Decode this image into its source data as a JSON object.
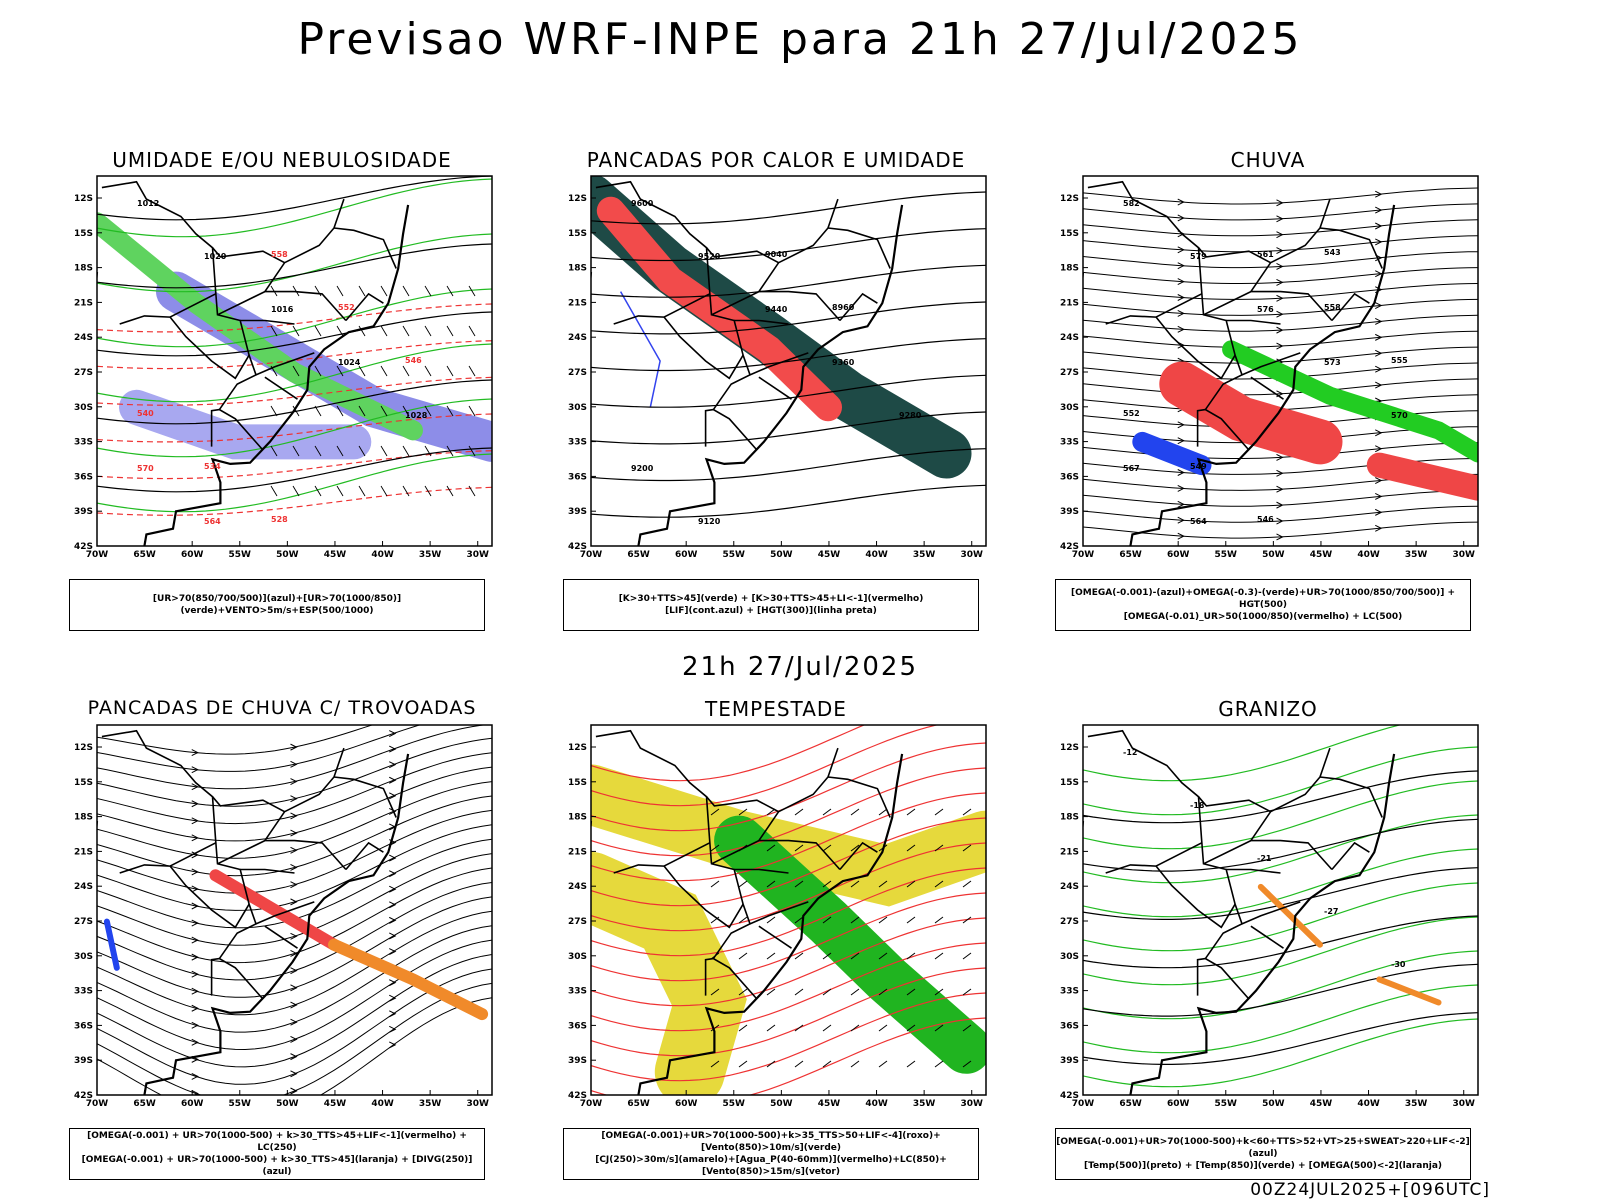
{
  "title": "Previsao WRF-INPE  para 21h 27/Jul/2025",
  "mid_title": "21h 27/Jul/2025",
  "footer": "00Z24JUL2025+[096UTC]",
  "axes": {
    "lat_labels": [
      "12S",
      "15S",
      "18S",
      "21S",
      "24S",
      "27S",
      "30S",
      "33S",
      "36S",
      "39S",
      "42S"
    ],
    "lon_labels": [
      "70W",
      "65W",
      "60W",
      "55W",
      "50W",
      "45W",
      "40W",
      "35W",
      "30W"
    ]
  },
  "panels": [
    {
      "title": "UMIDADE E/OU NEBULOSIDADE",
      "legend": [
        "[UR>70(850/700/500)](azul)+[UR>70(1000/850)](verde)+VENTO>5m/s+ESP(500/1000)"
      ],
      "contour_labels": [
        "1012",
        "1020",
        "1016",
        "1024",
        "1028",
        "570",
        "564",
        "558",
        "552",
        "546",
        "540",
        "534",
        "528"
      ]
    },
    {
      "title": "PANCADAS POR CALOR E UMIDADE",
      "legend": [
        "[K>30+TTS>45](verde) + [K>30+TTS>45+LI<-1](vermelho)",
        "[LIF](cont.azul) + [HGT(300)](linha preta)"
      ],
      "contour_labels": [
        "9600",
        "9520",
        "9440",
        "9360",
        "9280",
        "9200",
        "9120",
        "9040",
        "8960"
      ]
    },
    {
      "title": "CHUVA",
      "legend": [
        "[OMEGA(-0.001)-(azul)+OMEGA(-0.3)-(verde)+UR>70(1000/850/700/500)] + HGT(500)",
        "[OMEGA(-0.01)_UR>50(1000/850)(vermelho) + LC(500)"
      ],
      "contour_labels": [
        "582",
        "579",
        "576",
        "573",
        "570",
        "567",
        "564",
        "561",
        "558",
        "555",
        "552",
        "549",
        "546",
        "543"
      ]
    },
    {
      "title": "PANCADAS DE CHUVA C/ TROVOADAS",
      "legend": [
        "[OMEGA(-0.001) + UR>70(1000-500) + k>30_TTS>45+LIF<-1](vermelho) + LC(250)",
        "[OMEGA(-0.001) + UR>70(1000-500) + k>30_TTS>45](laranja) + [DIVG(250)](azul)"
      ],
      "contour_labels": []
    },
    {
      "title": "TEMPESTADE",
      "legend": [
        "[OMEGA(-0.001)+UR>70(1000-500)+k>35_TTS>50+LIF<-4](roxo)+[Vento(850)>10m/s](verde)",
        "[CJ(250)>30m/s](amarelo)+[Agua_P(40-60mm)](vermelho)+LC(850)+[Vento(850)>15m/s](vetor)"
      ],
      "contour_labels": []
    },
    {
      "title": "GRANIZO",
      "legend": [
        "[OMEGA(-0.001)+UR>70(1000-500)+k<60+TTS>52+VT>25+SWEAT>220+LIF<-2](azul)",
        "[Temp(500)](preto) + [Temp(850)](verde) + [OMEGA(500)<-2](laranja)"
      ],
      "contour_labels": [
        "-12",
        "-18",
        "-21",
        "-27",
        "-30"
      ]
    }
  ]
}
